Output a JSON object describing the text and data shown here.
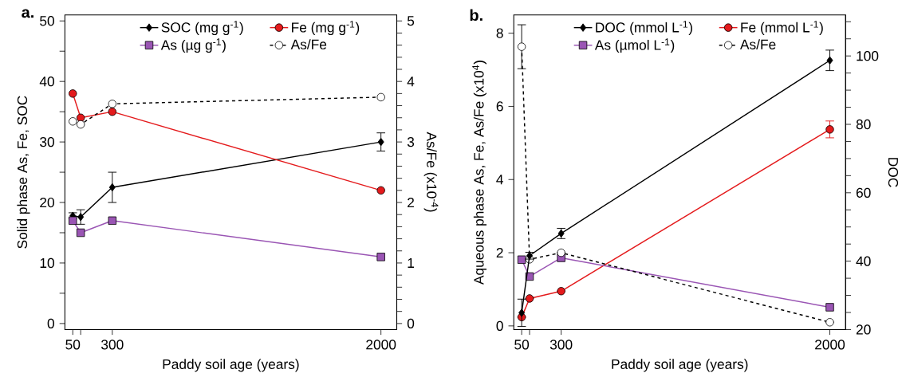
{
  "chart_data": [
    {
      "type": "line",
      "title": "a.",
      "xlabel": "Paddy soil age (years)",
      "ylabel": "Solid phase As, Fe, SOC",
      "y2label": "As/Fe (x10$^{-4}$)",
      "x": [
        50,
        100,
        300,
        2000
      ],
      "xlim": [
        0,
        2100
      ],
      "xticks": [
        50,
        {
          "value": 100,
          "label": null
        },
        300,
        2000
      ],
      "ylim": [
        -1,
        51
      ],
      "yticks": [
        0,
        {
          "value": 5,
          "label": null
        },
        10,
        {
          "value": 15,
          "label": null
        },
        20,
        {
          "value": 25,
          "label": null
        },
        30,
        {
          "value": 35,
          "label": null
        },
        40,
        {
          "value": 45,
          "label": null
        },
        50
      ],
      "y2lim": [
        -0.1,
        5.1
      ],
      "y2ticks": [
        0,
        {
          "value": 0.2,
          "label": null
        },
        {
          "value": 0.4,
          "label": null
        },
        {
          "value": 0.6,
          "label": null
        },
        {
          "value": 0.8,
          "label": null
        },
        1,
        {
          "value": 1.2,
          "label": null
        },
        {
          "value": 1.4,
          "label": null
        },
        {
          "value": 1.6,
          "label": null
        },
        {
          "value": 1.8,
          "label": null
        },
        2,
        {
          "value": 2.2,
          "label": null
        },
        {
          "value": 2.4,
          "label": null
        },
        {
          "value": 2.6,
          "label": null
        },
        {
          "value": 2.8,
          "label": null
        },
        3,
        {
          "value": 3.2,
          "label": null
        },
        {
          "value": 3.4,
          "label": null
        },
        {
          "value": 3.6,
          "label": null
        },
        {
          "value": 3.8,
          "label": null
        },
        4,
        {
          "value": 4.2,
          "label": null
        },
        {
          "value": 4.4,
          "label": null
        },
        {
          "value": 4.6,
          "label": null
        },
        {
          "value": 4.8,
          "label": null
        },
        5
      ],
      "legend": "top",
      "series": [
        {
          "name": "SOC (mg g$^{-1}$)",
          "color": "#000000",
          "marker": "diamond",
          "line_style": "solid",
          "values": [
            17.8,
            17.6,
            22.5,
            30.0
          ],
          "errors": [
            0.5,
            1.2,
            2.5,
            1.5
          ]
        },
        {
          "name": "Fe (mg g$^{-1}$)",
          "color": "#e41a1c",
          "marker": "circle",
          "line_style": "solid",
          "values": [
            38,
            34,
            35,
            22
          ]
        },
        {
          "name": "As (µg g$^{-1}$)",
          "color": "#9a55b4",
          "marker": "square",
          "line_style": "solid",
          "values": [
            17,
            15,
            17,
            11
          ]
        },
        {
          "name": "As/Fe",
          "color": "#000000",
          "marker": "circle",
          "line_style": "dashed",
          "axis": "y2",
          "values": [
            3.34,
            3.29,
            3.63,
            3.74
          ]
        }
      ]
    },
    {
      "type": "line",
      "title": "b.",
      "xlabel": "Paddy soil age (years)",
      "ylabel": "Aqueous phase As, Fe, As/Fe (x10$^{4}$)",
      "y2label": "DOC",
      "x": [
        50,
        100,
        300,
        2000
      ],
      "xlim": [
        0,
        2100
      ],
      "xticks": [
        50,
        {
          "value": 100,
          "label": null
        },
        300,
        2000
      ],
      "ylim": [
        -0.1,
        8.5
      ],
      "yticks": [
        0,
        2,
        4,
        6,
        8
      ],
      "y2lim": [
        20,
        112
      ],
      "y2ticks": [
        20,
        {
          "value": 25,
          "label": null
        },
        {
          "value": 30,
          "label": null
        },
        {
          "value": 35,
          "label": null
        },
        40,
        {
          "value": 45,
          "label": null
        },
        {
          "value": 50,
          "label": null
        },
        {
          "value": 55,
          "label": null
        },
        60,
        {
          "value": 65,
          "label": null
        },
        {
          "value": 70,
          "label": null
        },
        {
          "value": 75,
          "label": null
        },
        80,
        {
          "value": 85,
          "label": null
        },
        {
          "value": 90,
          "label": null
        },
        {
          "value": 95,
          "label": null
        },
        100,
        {
          "value": 105,
          "label": null
        },
        {
          "value": 110,
          "label": null
        }
      ],
      "legend": "top",
      "series": [
        {
          "name": "DOC (mmol L$^{-1}$)",
          "color": "#000000",
          "marker": "diamond",
          "line_style": "solid",
          "axis": "y2",
          "values": [
            24.9,
            41.6,
            48.1,
            98.7
          ],
          "errors": [
            4,
            1,
            1.5,
            3
          ]
        },
        {
          "name": "Fe (mmol L$^{-1}$)",
          "color": "#e41a1c",
          "marker": "circle",
          "line_style": "solid",
          "values": [
            0.24,
            0.75,
            0.95,
            5.37
          ],
          "errors": [
            null,
            null,
            null,
            0.23
          ]
        },
        {
          "name": "As (µmol L$^{-1}$)",
          "color": "#9a55b4",
          "marker": "square",
          "line_style": "solid",
          "values": [
            1.81,
            1.35,
            1.86,
            0.51
          ]
        },
        {
          "name": "As/Fe",
          "color": "#000000",
          "marker": "circle",
          "line_style": "dashed",
          "values": [
            7.63,
            1.82,
            2.0,
            0.1
          ],
          "errors": [
            0.6,
            null,
            null,
            null
          ]
        }
      ]
    }
  ]
}
